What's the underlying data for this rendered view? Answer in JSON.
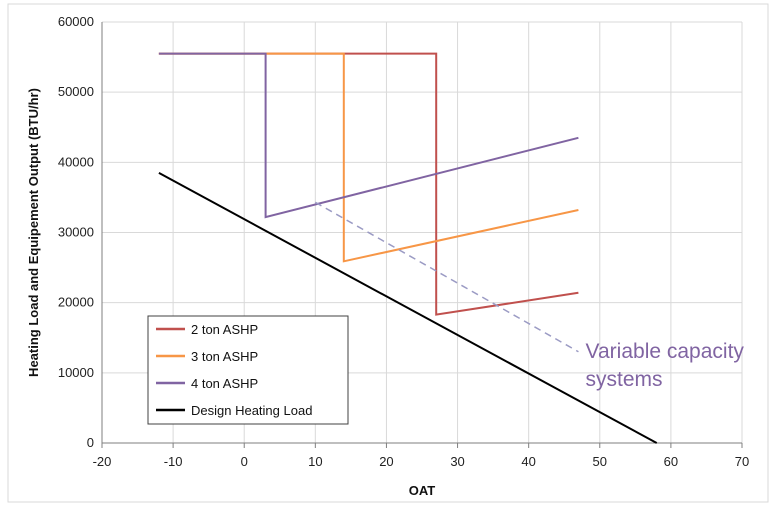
{
  "chart_data": {
    "type": "line",
    "title": "",
    "xlabel": "OAT",
    "ylabel": "Heating Load and Equipement Output (BTU/hr)",
    "xlim": [
      -20,
      70
    ],
    "ylim": [
      0,
      60000
    ],
    "xticks": [
      -20,
      -10,
      0,
      10,
      20,
      30,
      40,
      50,
      60,
      70
    ],
    "yticks": [
      0,
      10000,
      20000,
      30000,
      40000,
      50000,
      60000
    ],
    "x_tick_labels": [
      "-20",
      "-10",
      "0",
      "10",
      "20",
      "30",
      "40",
      "50",
      "60",
      "70"
    ],
    "y_tick_labels": [
      "0",
      "10000",
      "20000",
      "30000",
      "40000",
      "50000",
      "60000"
    ],
    "grid": true,
    "legend_position": "bottom-left",
    "series": [
      {
        "name": "2 ton ASHP",
        "color": "#c0504d",
        "x": [
          -12,
          27,
          27,
          47
        ],
        "y": [
          55500,
          55500,
          18300,
          21400
        ]
      },
      {
        "name": "3 ton ASHP",
        "color": "#f79646",
        "x": [
          -12,
          14,
          14,
          47
        ],
        "y": [
          55500,
          55500,
          25900,
          33200
        ]
      },
      {
        "name": "4 ton ASHP",
        "color": "#8064a2",
        "x": [
          -12,
          3,
          3,
          47
        ],
        "y": [
          55500,
          55500,
          32200,
          43500
        ]
      },
      {
        "name": "Design Heating Load",
        "color": "#000000",
        "x": [
          -12,
          58
        ],
        "y": [
          38500,
          0
        ]
      }
    ],
    "annotations": [
      {
        "kind": "dashed-line",
        "color": "#9b9bc4",
        "x": [
          10,
          47
        ],
        "y": [
          34300,
          13000
        ]
      },
      {
        "kind": "text",
        "lines": [
          "Variable capacity",
          "systems"
        ],
        "color": "#8064a2",
        "x": 48,
        "y": 12800
      }
    ]
  }
}
